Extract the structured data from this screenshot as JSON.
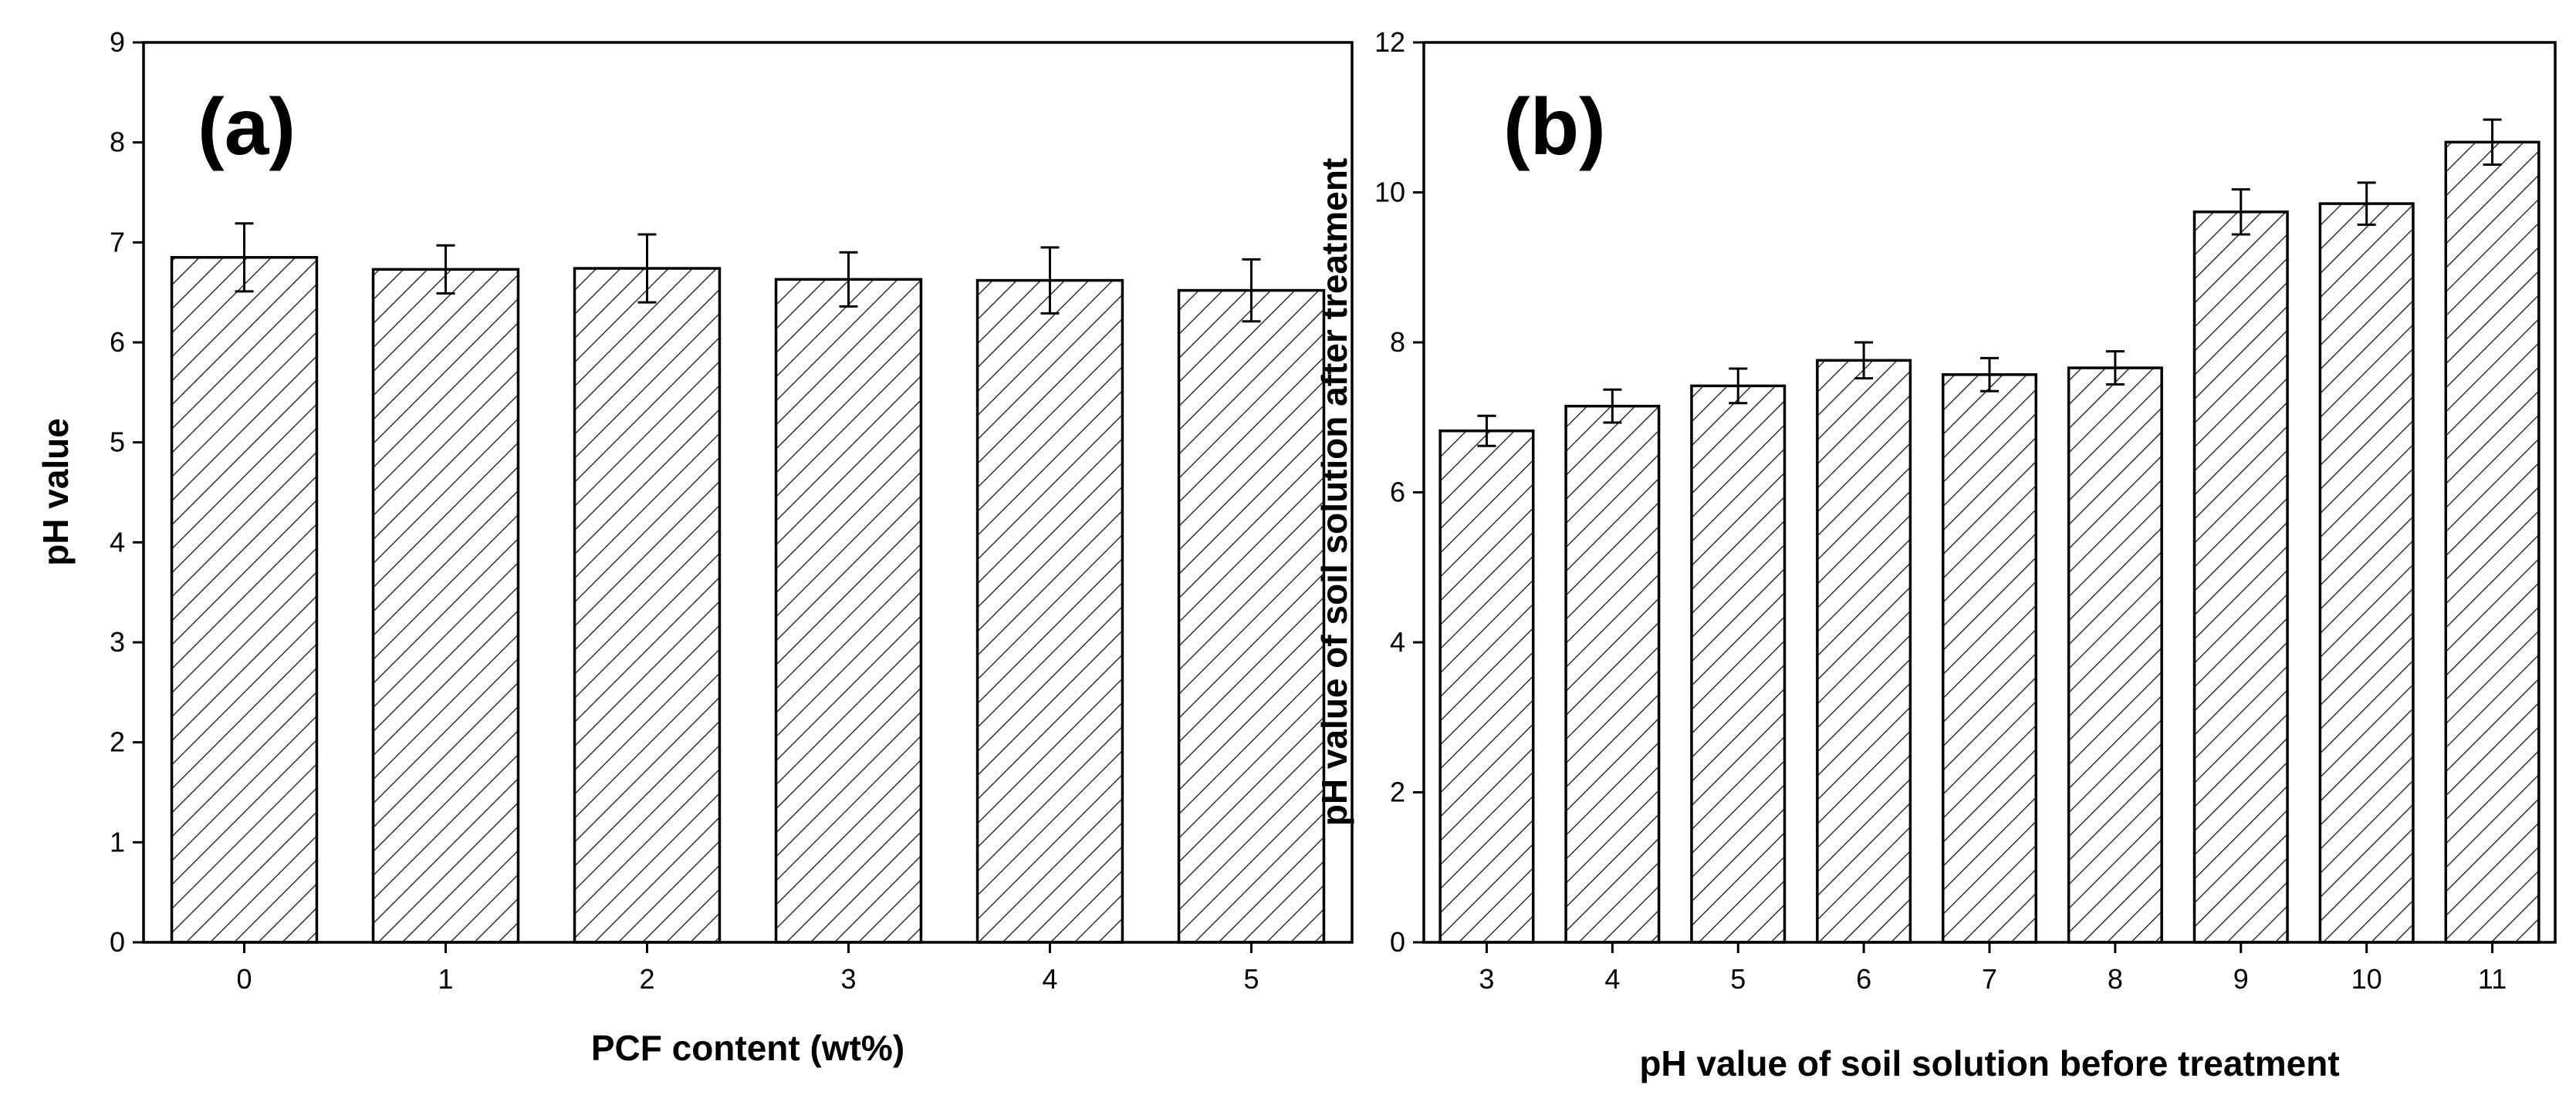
{
  "chart_data": [
    {
      "type": "bar",
      "panel_label": "(a)",
      "categories": [
        "0",
        "1",
        "2",
        "3",
        "4",
        "5"
      ],
      "values": [
        6.85,
        6.73,
        6.74,
        6.63,
        6.62,
        6.52
      ],
      "errors": [
        0.34,
        0.24,
        0.34,
        0.27,
        0.33,
        0.31
      ],
      "xlabel": "PCF content (wt%)",
      "ylabel": "pH value",
      "ylim": [
        0,
        9
      ],
      "yticks": [
        "0",
        "1",
        "2",
        "3",
        "4",
        "5",
        "6",
        "7",
        "8",
        "9"
      ],
      "pattern": "diagonal-hatch"
    },
    {
      "type": "bar",
      "panel_label": "(b)",
      "categories": [
        "3",
        "4",
        "5",
        "6",
        "7",
        "8",
        "9",
        "10",
        "11"
      ],
      "values": [
        6.82,
        7.15,
        7.42,
        7.76,
        7.57,
        7.66,
        9.74,
        9.85,
        10.67
      ],
      "errors": [
        0.2,
        0.22,
        0.23,
        0.24,
        0.22,
        0.22,
        0.3,
        0.28,
        0.3
      ],
      "xlabel": "pH value of soil solution before treatment",
      "ylabel": "pH value of soil solution after treatment",
      "ylim": [
        0,
        12
      ],
      "yticks": [
        "0",
        "2",
        "4",
        "6",
        "8",
        "10",
        "12"
      ],
      "pattern": "diagonal-hatch"
    }
  ]
}
